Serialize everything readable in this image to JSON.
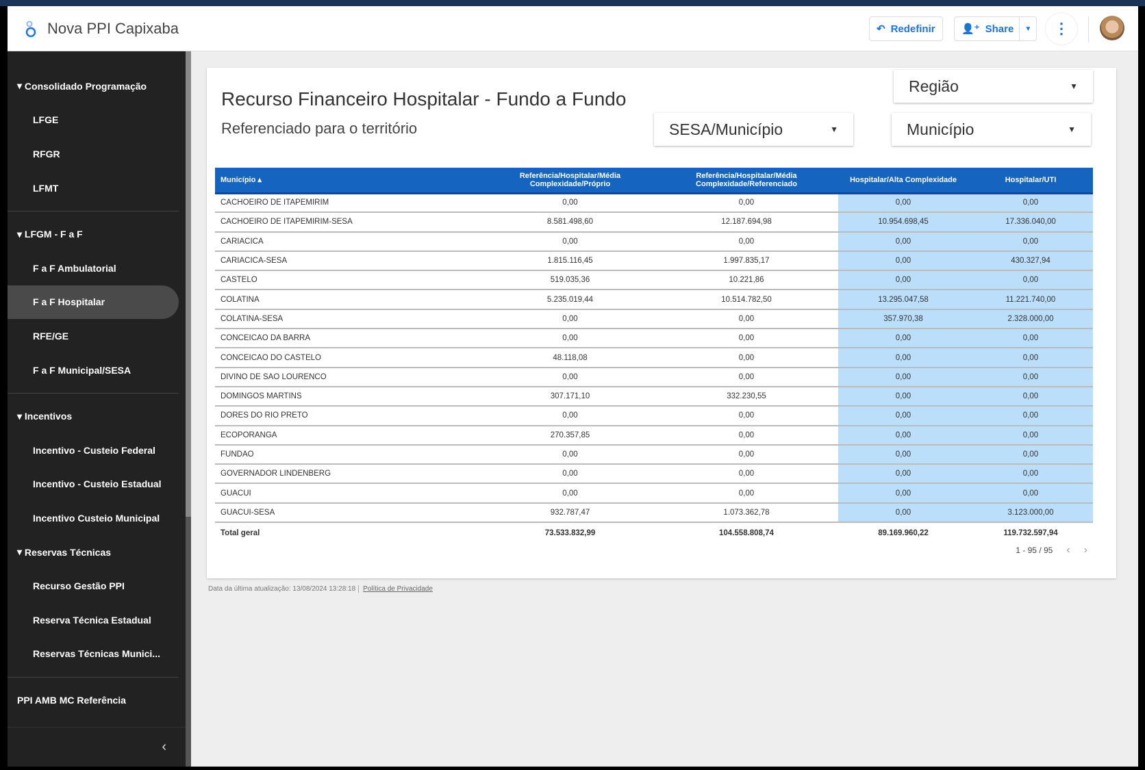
{
  "header": {
    "app_title": "Nova PPI Capixaba",
    "reset_label": "Redefinir",
    "share_label": "Share",
    "accent": "#1a73e8"
  },
  "sidebar": {
    "sections": [
      {
        "label": "Consolidado Programação",
        "items": [
          "LFGE",
          "RFGR",
          "LFMT"
        ]
      },
      {
        "label": "LFGM - F a F",
        "items": [
          "F a F Ambulatorial",
          "F a F Hospitalar",
          "RFE/GE",
          "F a F Municipal/SESA"
        ]
      },
      {
        "label": "Incentivos",
        "items": [
          "Incentivo - Custeio Federal",
          "Incentivo - Custeio Estadual",
          "Incentivo Custeio Municipal"
        ]
      },
      {
        "label": "Reservas Técnicas",
        "items": [
          "Recurso Gestão PPI",
          "Reserva Técnica Estadual",
          "Reservas Técnicas Munici..."
        ]
      }
    ],
    "standalone": "PPI AMB MC Referência",
    "active": "F a F Hospitalar"
  },
  "report": {
    "title": "Recurso Financeiro Hospitalar - Fundo a Fundo",
    "subtitle": "Referenciado para o território",
    "filters": {
      "regiao": "Região",
      "sesa_municipio": "SESA/Município",
      "municipio": "Município"
    }
  },
  "table": {
    "columns": [
      "Município ▴",
      "Referência/Hospitalar/Média Complexidade/Próprio",
      "Referência/Hospitalar/Média Complexidade/Referenciado",
      "Hospitalar/Alta Complexidade",
      "Hospitalar/UTI"
    ],
    "header_color": "#1565c0",
    "highlight_color": "#bbdefb",
    "rows": [
      [
        "CACHOEIRO DE ITAPEMIRIM",
        "0,00",
        "0,00",
        "0,00",
        "0,00"
      ],
      [
        "CACHOEIRO DE ITAPEMIRIM-SESA",
        "8.581.498,60",
        "12.187.694,98",
        "10.954.698,45",
        "17.336.040,00"
      ],
      [
        "CARIACICA",
        "0,00",
        "0,00",
        "0,00",
        "0,00"
      ],
      [
        "CARIACICA-SESA",
        "1.815.116,45",
        "1.997.835,17",
        "0,00",
        "430.327,94"
      ],
      [
        "CASTELO",
        "519.035,36",
        "10.221,86",
        "0,00",
        "0,00"
      ],
      [
        "COLATINA",
        "5.235.019,44",
        "10.514.782,50",
        "13.295.047,58",
        "11.221.740,00"
      ],
      [
        "COLATINA-SESA",
        "0,00",
        "0,00",
        "357.970,38",
        "2.328.000,00"
      ],
      [
        "CONCEICAO DA BARRA",
        "0,00",
        "0,00",
        "0,00",
        "0,00"
      ],
      [
        "CONCEICAO DO CASTELO",
        "48.118,08",
        "0,00",
        "0,00",
        "0,00"
      ],
      [
        "DIVINO DE SAO LOURENCO",
        "0,00",
        "0,00",
        "0,00",
        "0,00"
      ],
      [
        "DOMINGOS MARTINS",
        "307.171,10",
        "332.230,55",
        "0,00",
        "0,00"
      ],
      [
        "DORES DO RIO PRETO",
        "0,00",
        "0,00",
        "0,00",
        "0,00"
      ],
      [
        "ECOPORANGA",
        "270.357,85",
        "0,00",
        "0,00",
        "0,00"
      ],
      [
        "FUNDAO",
        "0,00",
        "0,00",
        "0,00",
        "0,00"
      ],
      [
        "GOVERNADOR LINDENBERG",
        "0,00",
        "0,00",
        "0,00",
        "0,00"
      ],
      [
        "GUACUI",
        "0,00",
        "0,00",
        "0,00",
        "0,00"
      ],
      [
        "GUACUI-SESA",
        "932.787,47",
        "1.073.362,78",
        "0,00",
        "3.123.000,00"
      ]
    ],
    "total": [
      "Total geral",
      "73.533.832,99",
      "104.558.808,74",
      "89.169.960,22",
      "119.732.597,94"
    ],
    "pagination": "1 - 95 / 95"
  },
  "footer": {
    "updated": "Data da última atualização: 13/08/2024 13:28:18",
    "privacy": "Política de Privacidade"
  }
}
